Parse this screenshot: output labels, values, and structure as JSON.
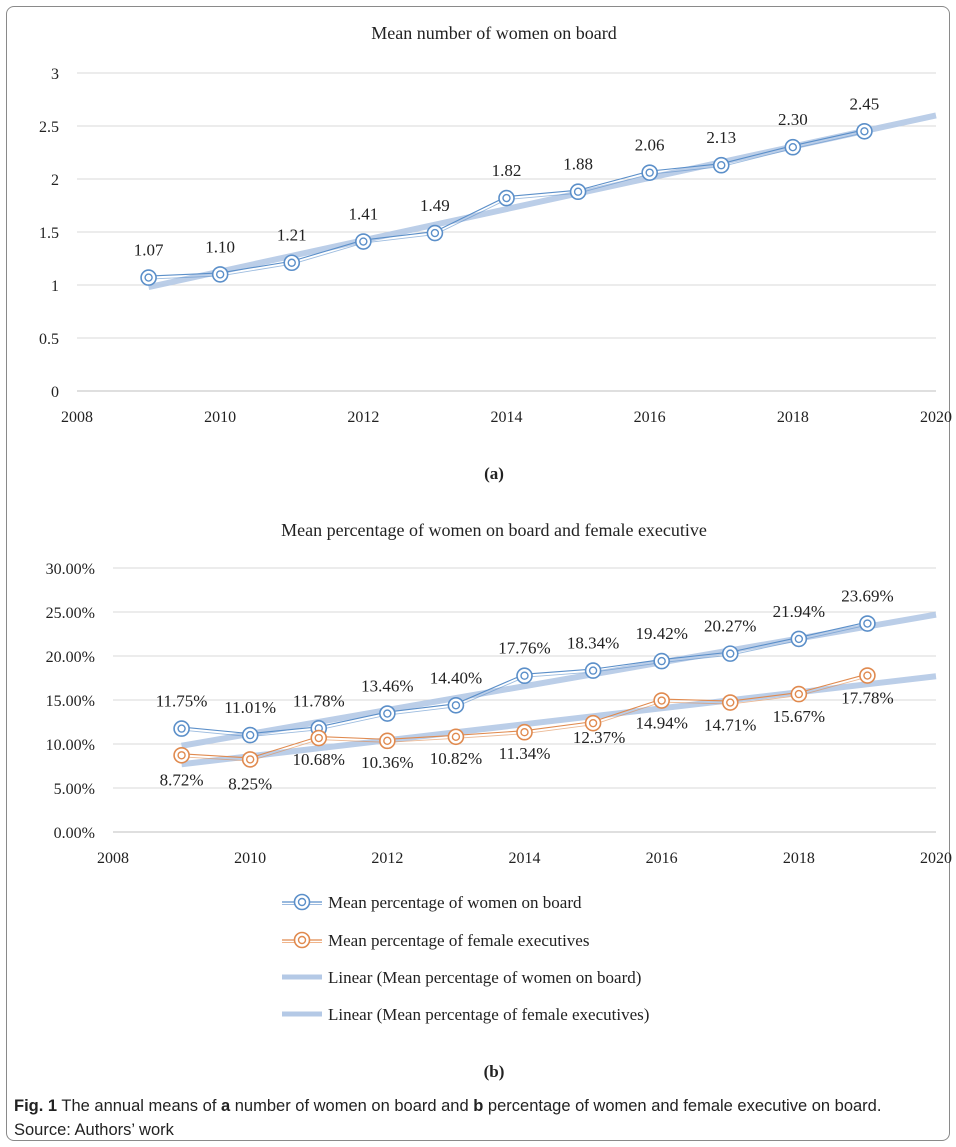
{
  "chart_data": [
    {
      "type": "line",
      "panel_label": "(a)",
      "title": "Mean number of women on board",
      "x": [
        2009,
        2010,
        2011,
        2012,
        2013,
        2014,
        2015,
        2016,
        2017,
        2018,
        2019
      ],
      "series": [
        {
          "values": [
            1.07,
            1.1,
            1.21,
            1.41,
            1.49,
            1.82,
            1.88,
            2.06,
            2.13,
            2.3,
            2.45
          ],
          "labels": [
            "1.07",
            "1.10",
            "1.21",
            "1.41",
            "1.49",
            "1.82",
            "1.88",
            "2.06",
            "2.13",
            "2.30",
            "2.45"
          ],
          "color": "#5b8fc9"
        }
      ],
      "trendline": {
        "x": [
          2009,
          2020
        ],
        "values": [
          0.98,
          2.6
        ],
        "color": "#b4c9e6"
      },
      "xlim": [
        2008,
        2020
      ],
      "ylim": [
        0,
        3
      ],
      "xticks": [
        "2008",
        "2010",
        "2012",
        "2014",
        "2016",
        "2018",
        "2020"
      ],
      "yticks": [
        "0",
        "0.5",
        "1",
        "1.5",
        "2",
        "2.5",
        "3"
      ],
      "grid": true
    },
    {
      "type": "line",
      "panel_label": "(b)",
      "title": "Mean percentage of women on board and female executive",
      "x": [
        2009,
        2010,
        2011,
        2012,
        2013,
        2014,
        2015,
        2016,
        2017,
        2018,
        2019
      ],
      "series": [
        {
          "name": "Mean percentage of women on board",
          "color": "#5b8fc9",
          "values": [
            11.75,
            11.01,
            11.78,
            13.46,
            14.4,
            17.76,
            18.34,
            19.42,
            20.27,
            21.94,
            23.69
          ],
          "labels": [
            "11.75%",
            "11.01%",
            "11.78%",
            "13.46%",
            "14.40%",
            "17.76%",
            "18.34%",
            "19.42%",
            "20.27%",
            "21.94%",
            "23.69%"
          ]
        },
        {
          "name": "Mean percentage of female executives",
          "color": "#e08a4f",
          "values": [
            8.72,
            8.25,
            10.68,
            10.36,
            10.82,
            11.34,
            12.37,
            14.94,
            14.71,
            15.67,
            17.78
          ],
          "labels": [
            "8.72%",
            "8.25%",
            "10.68%",
            "10.36%",
            "10.82%",
            "11.34%",
            "12.37%",
            "14.94%",
            "14.71%",
            "15.67%",
            "17.78%"
          ]
        }
      ],
      "trendlines": [
        {
          "name": "Linear (Mean percentage of women on board)",
          "x": [
            2009,
            2020
          ],
          "values": [
            9.8,
            24.7
          ],
          "color": "#b4c9e6"
        },
        {
          "name": "Linear (Mean percentage of female executives)",
          "x": [
            2009,
            2020
          ],
          "values": [
            7.7,
            17.7
          ],
          "color": "#b4c9e6"
        }
      ],
      "xlim": [
        2008,
        2020
      ],
      "ylim": [
        0,
        30
      ],
      "xticks": [
        "2008",
        "2010",
        "2012",
        "2014",
        "2016",
        "2018",
        "2020"
      ],
      "yticks": [
        "0.00%",
        "5.00%",
        "10.00%",
        "15.00%",
        "20.00%",
        "25.00%",
        "30.00%"
      ],
      "grid": true,
      "legend_position": "bottom"
    }
  ],
  "caption": {
    "prefix": "Fig. 1",
    "part1": "  The annual means of ",
    "a": "a",
    "part2": " number of women on board and ",
    "b": "b",
    "part3": " percentage of women and female executive on board.  Source: Authors’ work"
  }
}
